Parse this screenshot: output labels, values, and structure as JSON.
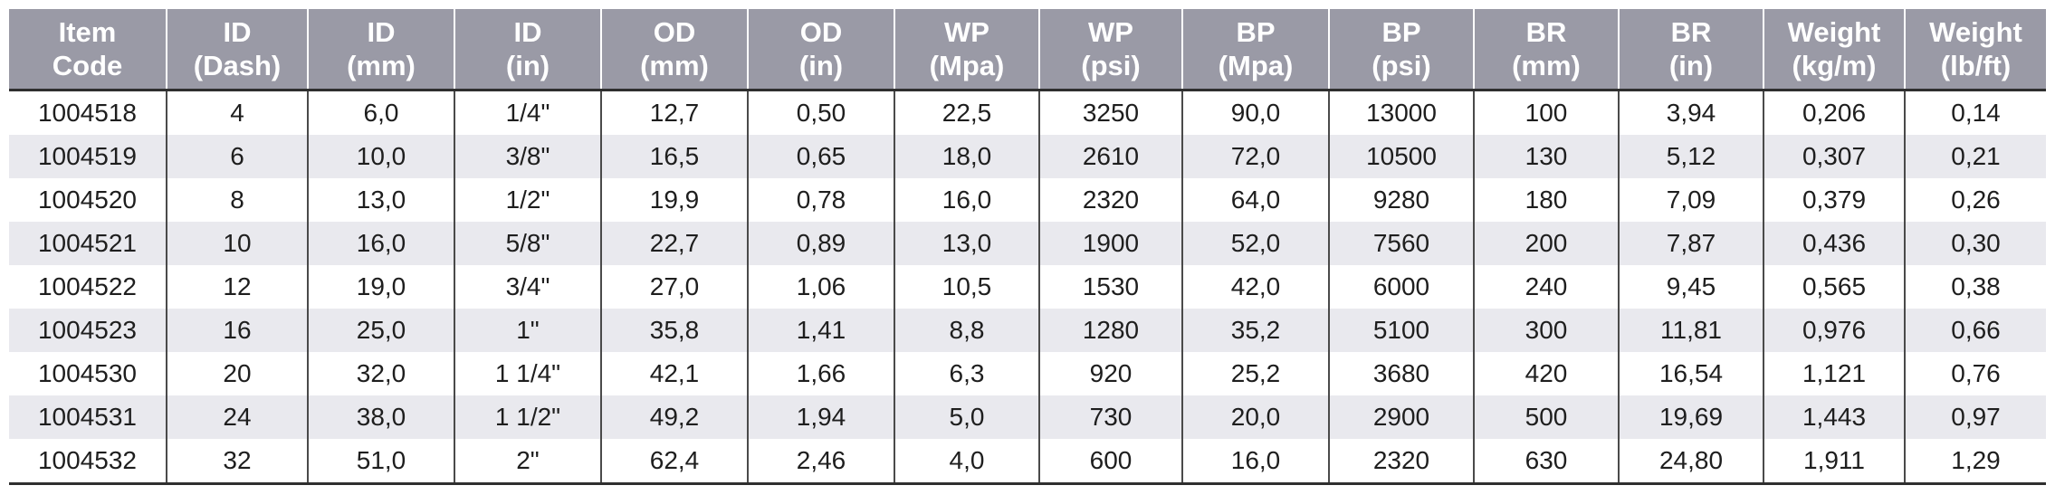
{
  "table": {
    "headers": [
      [
        "Item",
        "Code"
      ],
      [
        "ID",
        "(Dash)"
      ],
      [
        "ID",
        "(mm)"
      ],
      [
        "ID",
        "(in)"
      ],
      [
        "OD",
        "(mm)"
      ],
      [
        "OD",
        "(in)"
      ],
      [
        "WP",
        "(Mpa)"
      ],
      [
        "WP",
        "(psi)"
      ],
      [
        "BP",
        "(Mpa)"
      ],
      [
        "BP",
        "(psi)"
      ],
      [
        "BR",
        "(mm)"
      ],
      [
        "BR",
        "(in)"
      ],
      [
        "Weight",
        "(kg/m)"
      ],
      [
        "Weight",
        "(lb/ft)"
      ]
    ],
    "rows": [
      [
        "1004518",
        "4",
        "6,0",
        "1/4\"",
        "12,7",
        "0,50",
        "22,5",
        "3250",
        "90,0",
        "13000",
        "100",
        "3,94",
        "0,206",
        "0,14"
      ],
      [
        "1004519",
        "6",
        "10,0",
        "3/8\"",
        "16,5",
        "0,65",
        "18,0",
        "2610",
        "72,0",
        "10500",
        "130",
        "5,12",
        "0,307",
        "0,21"
      ],
      [
        "1004520",
        "8",
        "13,0",
        "1/2\"",
        "19,9",
        "0,78",
        "16,0",
        "2320",
        "64,0",
        "9280",
        "180",
        "7,09",
        "0,379",
        "0,26"
      ],
      [
        "1004521",
        "10",
        "16,0",
        "5/8\"",
        "22,7",
        "0,89",
        "13,0",
        "1900",
        "52,0",
        "7560",
        "200",
        "7,87",
        "0,436",
        "0,30"
      ],
      [
        "1004522",
        "12",
        "19,0",
        "3/4\"",
        "27,0",
        "1,06",
        "10,5",
        "1530",
        "42,0",
        "6000",
        "240",
        "9,45",
        "0,565",
        "0,38"
      ],
      [
        "1004523",
        "16",
        "25,0",
        "1\"",
        "35,8",
        "1,41",
        "8,8",
        "1280",
        "35,2",
        "5100",
        "300",
        "11,81",
        "0,976",
        "0,66"
      ],
      [
        "1004530",
        "20",
        "32,0",
        "1 1/4\"",
        "42,1",
        "1,66",
        "6,3",
        "920",
        "25,2",
        "3680",
        "420",
        "16,54",
        "1,121",
        "0,76"
      ],
      [
        "1004531",
        "24",
        "38,0",
        "1 1/2\"",
        "49,2",
        "1,94",
        "5,0",
        "730",
        "20,0",
        "2900",
        "500",
        "19,69",
        "1,443",
        "0,97"
      ],
      [
        "1004532",
        "32",
        "51,0",
        "2\"",
        "62,4",
        "2,46",
        "4,0",
        "600",
        "16,0",
        "2320",
        "630",
        "24,80",
        "1,911",
        "1,29"
      ]
    ]
  }
}
